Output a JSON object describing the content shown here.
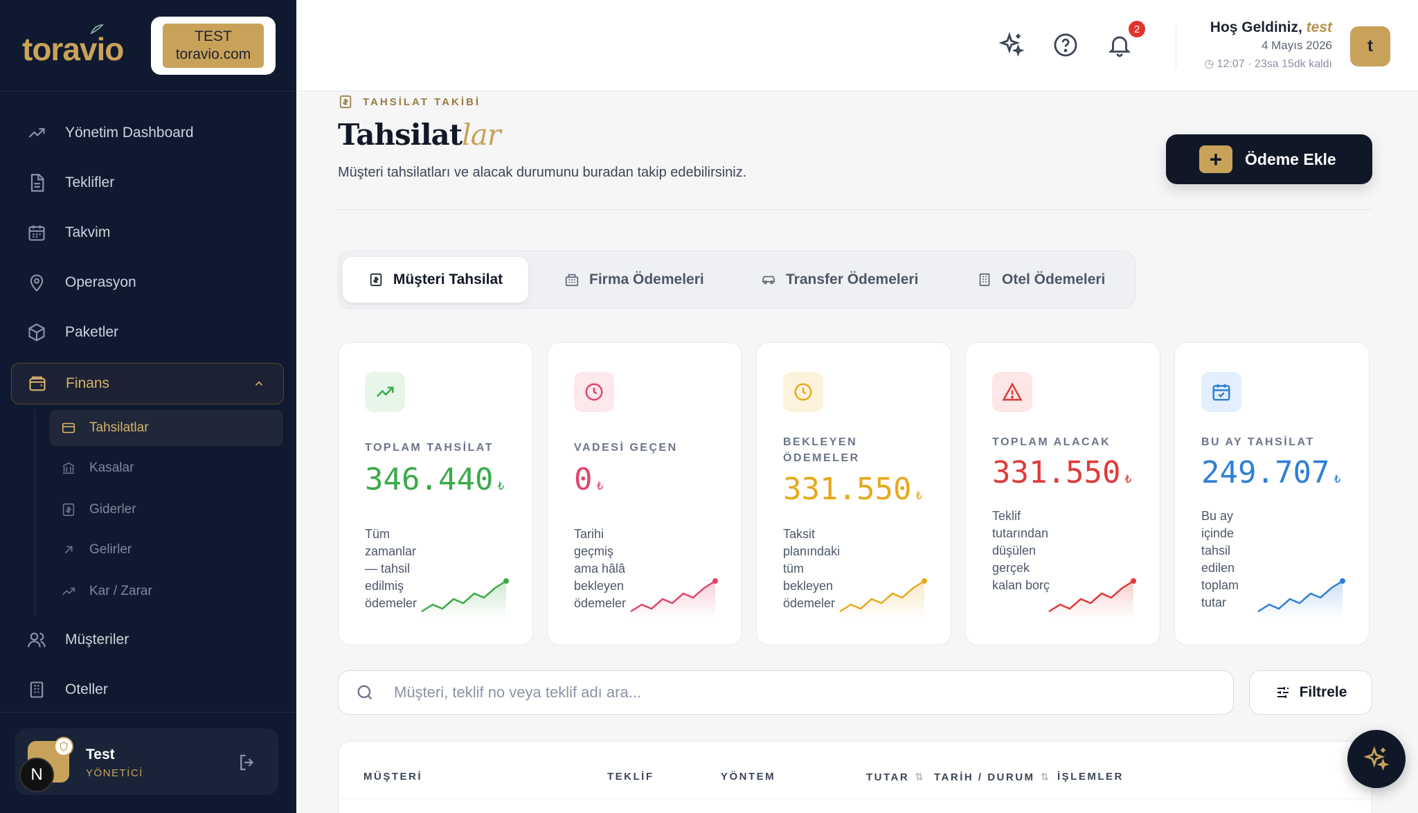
{
  "brand": {
    "logo": "toravio",
    "badge_line1": "TEST",
    "badge_line2": "toravio.com"
  },
  "sidebar": {
    "items": [
      {
        "label": "Yönetim Dashboard",
        "icon": "trend-up-icon"
      },
      {
        "label": "Teklifler",
        "icon": "document-icon"
      },
      {
        "label": "Takvim",
        "icon": "calendar-icon"
      },
      {
        "label": "Operasyon",
        "icon": "map-pin-icon"
      },
      {
        "label": "Paketler",
        "icon": "box-icon"
      },
      {
        "label": "Finans",
        "icon": "wallet-icon"
      },
      {
        "label": "Müşteriler",
        "icon": "users-icon"
      },
      {
        "label": "Oteller",
        "icon": "building-icon"
      }
    ],
    "finance_sub": [
      {
        "label": "Tahsilatlar",
        "icon": "credit-card-icon"
      },
      {
        "label": "Kasalar",
        "icon": "bank-icon"
      },
      {
        "label": "Giderler",
        "icon": "receipt-icon"
      },
      {
        "label": "Gelirler",
        "icon": "arrow-up-right-icon"
      },
      {
        "label": "Kar / Zarar",
        "icon": "trend-icon"
      }
    ],
    "user": {
      "initial": "N",
      "name": "Test",
      "role": "YÖNETİCİ"
    }
  },
  "topbar": {
    "notification_count": "2",
    "welcome_prefix": "Hoş Geldiniz,",
    "welcome_user": "test",
    "date": "4 Mayıs 2026",
    "time_info": "12:07 · 23sa 15dk kaldı",
    "avatar_initial": "t"
  },
  "page": {
    "eyebrow": "TAHSİLAT TAKİBİ",
    "title_main": "Tahsilat",
    "title_accent": "lar",
    "description": "Müşteri tahsilatları ve alacak durumunu buradan takip edebilirsiniz.",
    "add_button": "Ödeme Ekle"
  },
  "tabs": [
    {
      "label": "Müşteri Tahsilat"
    },
    {
      "label": "Firma Ödemeleri"
    },
    {
      "label": "Transfer Ödemeleri"
    },
    {
      "label": "Otel Ödemeleri"
    }
  ],
  "stats": [
    {
      "label": "TOPLAM TAHSİLAT",
      "value": "346.440",
      "currency": "₺",
      "desc": "Tüm zamanlar — tahsil edilmiş ödemeler",
      "color": "#3aaa4a",
      "bg": "#e8f6ea",
      "icon": "trend-up-icon"
    },
    {
      "label": "VADESİ GEÇEN",
      "value": "0",
      "currency": "₺",
      "desc": "Tarihi geçmiş ama hâlâ bekleyen ödemeler",
      "color": "#e0456a",
      "bg": "#fde8ec",
      "icon": "clock-icon"
    },
    {
      "label": "BEKLEYEN ÖDEMELER",
      "value": "331.550",
      "currency": "₺",
      "desc": "Taksit planındaki tüm bekleyen ödemeler",
      "color": "#e8a81c",
      "bg": "#fdf3dc",
      "icon": "clock-icon"
    },
    {
      "label": "TOPLAM ALACAK",
      "value": "331.550",
      "currency": "₺",
      "desc": "Teklif tutarından düşülen gerçek kalan borç",
      "color": "#e03a3a",
      "bg": "#fde6e6",
      "icon": "alert-icon"
    },
    {
      "label": "BU AY TAHSİLAT",
      "value": "249.707",
      "currency": "₺",
      "desc": "Bu ay içinde tahsil edilen toplam tutar",
      "color": "#2f7fd8",
      "bg": "#e3effc",
      "icon": "calendar-check-icon"
    }
  ],
  "search": {
    "placeholder": "Müşteri, teklif no veya teklif adı ara..."
  },
  "filter_button": "Filtrele",
  "table": {
    "headers": [
      {
        "label": "MÜŞTERİ"
      },
      {
        "label": "TEKLİF"
      },
      {
        "label": "YÖNTEM"
      },
      {
        "label": "TUTAR",
        "sort": "⇅"
      },
      {
        "label": "TARİH / DURUM",
        "sort": "⇅"
      },
      {
        "label": "İŞLEMLER"
      }
    ]
  }
}
